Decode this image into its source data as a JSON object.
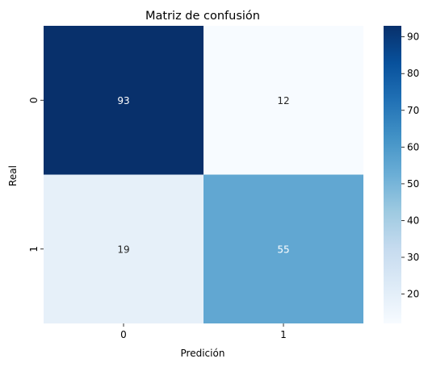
{
  "chart_data": {
    "type": "heatmap",
    "title": "Matriz de confusión",
    "xlabel": "Predición",
    "ylabel": "Real",
    "x_categories": [
      "0",
      "1"
    ],
    "y_categories": [
      "0",
      "1"
    ],
    "values": [
      [
        93,
        12
      ],
      [
        19,
        55
      ]
    ],
    "annotations": true,
    "colormap": "Blues",
    "colorbar": {
      "vmin": 12,
      "vmax": 93,
      "ticks": [
        20,
        30,
        40,
        50,
        60,
        70,
        80,
        90
      ]
    },
    "colors": {
      "low": "#f7fbff",
      "high": "#08306b",
      "text_light": "#ffffff",
      "text_dark": "#262626"
    }
  }
}
